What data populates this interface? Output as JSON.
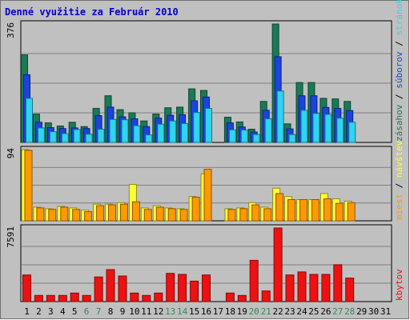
{
  "chart_data": {
    "type": "bar",
    "title": "Denné využitie za Február 2010",
    "categories": [
      "1",
      "2",
      "3",
      "4",
      "5",
      "6",
      "7",
      "8",
      "9",
      "10",
      "11",
      "12",
      "13",
      "14",
      "15",
      "16",
      "17",
      "18",
      "19",
      "20",
      "21",
      "22",
      "23",
      "24",
      "25",
      "26",
      "27",
      "28",
      "29",
      "30",
      "31"
    ],
    "weekend_days": [
      "6",
      "7",
      "13",
      "14",
      "20",
      "21",
      "27",
      "28"
    ],
    "colors": {
      "background": "#c0c0c0",
      "title": "#0000cc",
      "zasahov": "#1a7a55",
      "suborov": "#1a44dd",
      "stranok": "#2fd4f0",
      "navstev": "#ffff33",
      "miest": "#ff9900",
      "kbytov": "#ee1111",
      "weekend_label": "#338855"
    },
    "panels": [
      {
        "id": "hits",
        "max_label": "376",
        "ylim": [
          0,
          376
        ],
        "legend": [
          "zásahov",
          "súborov",
          "stránok"
        ],
        "legend_separator": " / ",
        "series": [
          {
            "name": "zásahov",
            "values": [
              278,
              90,
              62,
              52,
              64,
              50,
              108,
              148,
              104,
              94,
              68,
              90,
              110,
              112,
              170,
              165,
              0,
              80,
              65,
              42,
              130,
              376,
              59,
              190,
              190,
              140,
              138,
              130,
              0,
              0,
              0
            ]
          },
          {
            "name": "súborov",
            "values": [
              215,
              64,
              47,
              44,
              46,
              44,
              85,
              112,
              81,
              75,
              50,
              77,
              86,
              88,
              132,
              144,
              0,
              62,
              49,
              33,
              102,
              272,
              43,
              148,
              148,
              111,
              108,
              101,
              0,
              0,
              0
            ]
          },
          {
            "name": "stránok",
            "values": [
              140,
              46,
              34,
              28,
              41,
              26,
              42,
              73,
              72,
              53,
              24,
              58,
              68,
              60,
              95,
              108,
              0,
              40,
              39,
              25,
              75,
              163,
              25,
              102,
              92,
              89,
              77,
              64,
              0,
              0,
              0
            ]
          }
        ]
      },
      {
        "id": "visits",
        "max_label": "94",
        "ylim": [
          0,
          94
        ],
        "legend": [
          "miest",
          "návštev"
        ],
        "legend_separator": " / ",
        "series": [
          {
            "name": "návštev",
            "values": [
              94,
              18,
              16,
              19,
              17,
              14,
              22,
              22,
              24,
              48,
              17,
              20,
              17,
              16,
              32,
              62,
              0,
              16,
              17,
              24,
              18,
              43,
              32,
              28,
              28,
              36,
              29,
              26,
              0,
              0,
              0
            ]
          },
          {
            "name": "miest",
            "values": [
              93,
              17,
              15,
              18,
              15,
              12,
              20,
              21,
              22,
              25,
              15,
              18,
              16,
              15,
              31,
              68,
              0,
              15,
              16,
              21,
              16,
              36,
              28,
              28,
              28,
              29,
              23,
              24,
              0,
              0,
              0
            ]
          }
        ]
      },
      {
        "id": "traffic",
        "max_label": "7591",
        "ylim": [
          0,
          7591
        ],
        "legend": [
          "kbytov"
        ],
        "legend_separator": "",
        "series": [
          {
            "name": "kbytov",
            "values": [
              2744,
              638,
              638,
              638,
              883,
              638,
              2540,
              3301,
              2642,
              883,
              638,
              883,
              2911,
              2806,
              2112,
              2744,
              0,
              883,
              638,
              4257,
              1098,
              7591,
              2744,
              3059,
              2806,
              2806,
              3806,
              2426,
              0,
              0,
              0
            ]
          }
        ]
      }
    ]
  }
}
